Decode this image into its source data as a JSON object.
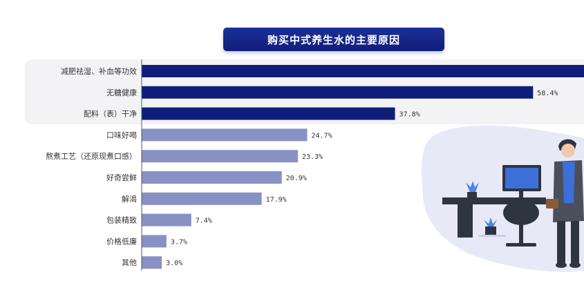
{
  "chart_data": {
    "type": "bar",
    "orientation": "horizontal",
    "title": "购买中式养生水的主要原因",
    "categories": [
      "减肥祛湿、补血等功效",
      "无糖健康",
      "配料（表）干净",
      "口味好喝",
      "熬煮工艺（还原现煮口感）",
      "好奇尝鲜",
      "解渴",
      "包装精致",
      "价格低廉",
      "其他"
    ],
    "values": [
      66.0,
      58.4,
      37.8,
      24.7,
      23.3,
      20.9,
      17.9,
      7.4,
      3.7,
      3.0
    ],
    "value_labels": [
      "",
      "58.4%",
      "37.8%",
      "24.7%",
      "23.3%",
      "20.9%",
      "17.9%",
      "7.4%",
      "3.7%",
      "3.0%"
    ],
    "highlight_count": 3,
    "xlim": [
      0,
      66
    ],
    "grid": false,
    "legend": "none"
  },
  "colors": {
    "highlight": "#0f1e7a",
    "normal": "#8791c4",
    "panel": "#f3f3f5",
    "title_bg": "#142789"
  }
}
